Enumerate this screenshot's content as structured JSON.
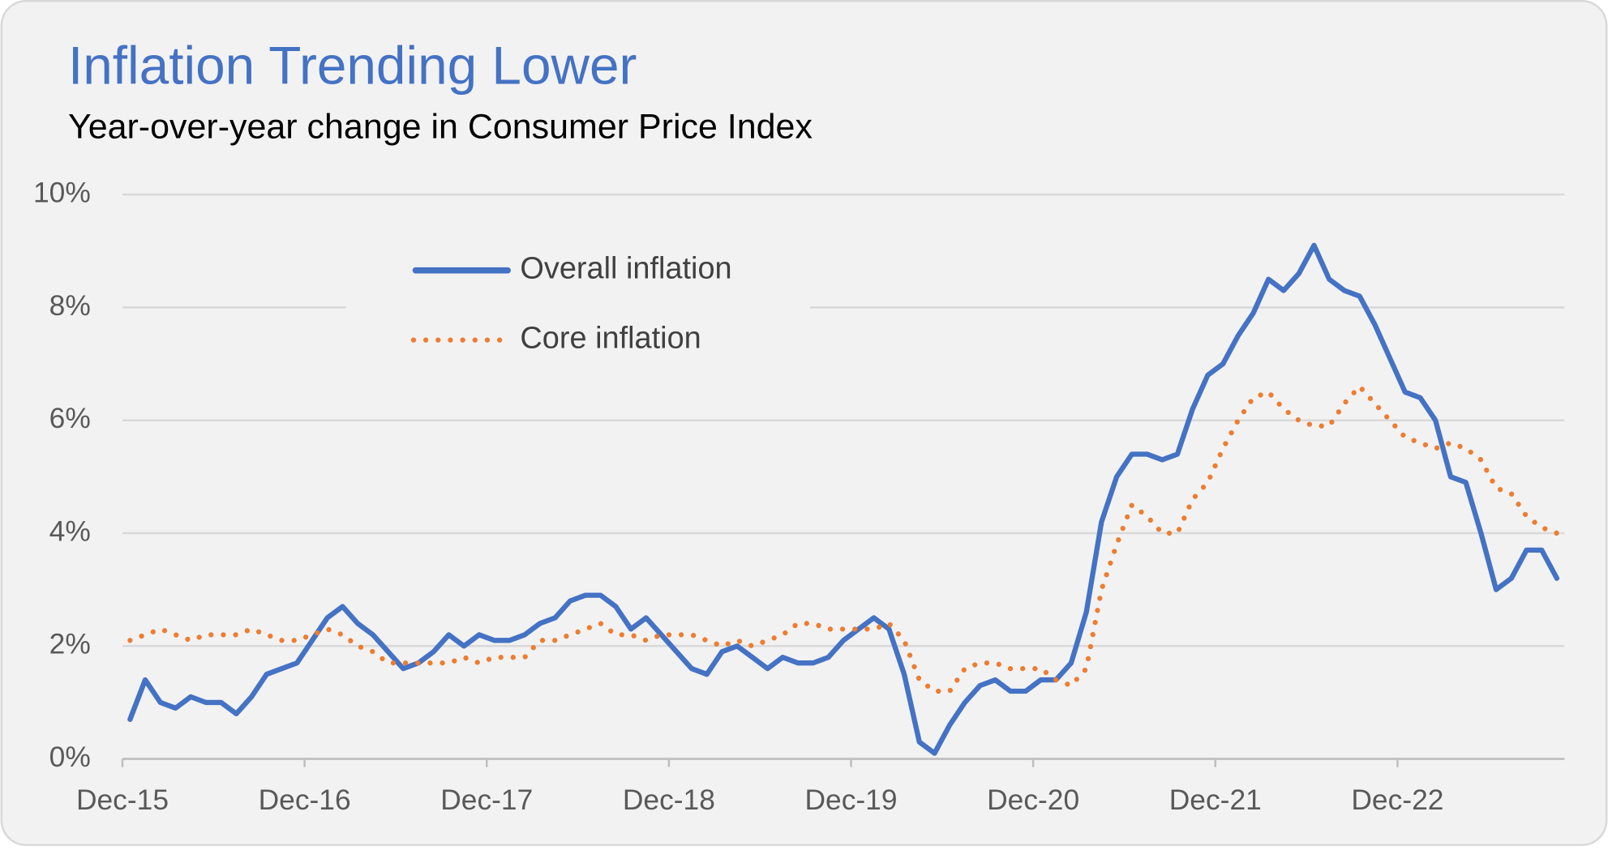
{
  "chart_data": {
    "type": "line",
    "title": "Inflation Trending Lower",
    "subtitle": "Year-over-year change in Consumer Price Index",
    "categories": [
      "Dec-15",
      null,
      null,
      null,
      null,
      null,
      null,
      null,
      null,
      null,
      null,
      null,
      "Dec-16",
      null,
      null,
      null,
      null,
      null,
      null,
      null,
      null,
      null,
      null,
      null,
      "Dec-17",
      null,
      null,
      null,
      null,
      null,
      null,
      null,
      null,
      null,
      null,
      null,
      "Dec-18",
      null,
      null,
      null,
      null,
      null,
      null,
      null,
      null,
      null,
      null,
      null,
      "Dec-19",
      null,
      null,
      null,
      null,
      null,
      null,
      null,
      null,
      null,
      null,
      null,
      "Dec-20",
      null,
      null,
      null,
      null,
      null,
      null,
      null,
      null,
      null,
      null,
      null,
      "Dec-21",
      null,
      null,
      null,
      null,
      null,
      null,
      null,
      null,
      null,
      null,
      null,
      "Dec-22",
      null,
      null,
      null,
      null,
      null,
      null,
      null,
      null,
      null,
      null
    ],
    "series": [
      {
        "name": "Overall inflation",
        "color": "#4472c4",
        "style": "solid",
        "values": [
          0.7,
          1.4,
          1.0,
          0.9,
          1.1,
          1.0,
          1.0,
          0.8,
          1.1,
          1.5,
          1.6,
          1.7,
          2.1,
          2.5,
          2.7,
          2.4,
          2.2,
          1.9,
          1.6,
          1.7,
          1.9,
          2.2,
          2.0,
          2.2,
          2.1,
          2.1,
          2.2,
          2.4,
          2.5,
          2.8,
          2.9,
          2.9,
          2.7,
          2.3,
          2.5,
          2.2,
          1.9,
          1.6,
          1.5,
          1.9,
          2.0,
          1.8,
          1.6,
          1.8,
          1.7,
          1.7,
          1.8,
          2.1,
          2.3,
          2.5,
          2.3,
          1.5,
          0.3,
          0.1,
          0.6,
          1.0,
          1.3,
          1.4,
          1.2,
          1.2,
          1.4,
          1.4,
          1.7,
          2.6,
          4.2,
          5.0,
          5.4,
          5.4,
          5.3,
          5.4,
          6.2,
          6.8,
          7.0,
          7.5,
          7.9,
          8.5,
          8.3,
          8.6,
          9.1,
          8.5,
          8.3,
          8.2,
          7.7,
          7.1,
          6.5,
          6.4,
          6.0,
          5.0,
          4.9,
          4.0,
          3.0,
          3.2,
          3.7,
          3.7,
          3.2
        ]
      },
      {
        "name": "Core inflation",
        "color": "#ed7d31",
        "style": "dotted",
        "values": [
          2.1,
          2.2,
          2.3,
          2.2,
          2.1,
          2.2,
          2.2,
          2.2,
          2.3,
          2.2,
          2.1,
          2.1,
          2.2,
          2.3,
          2.2,
          2.0,
          1.9,
          1.7,
          1.7,
          1.7,
          1.7,
          1.7,
          1.8,
          1.7,
          1.8,
          1.8,
          1.8,
          2.1,
          2.1,
          2.2,
          2.3,
          2.4,
          2.2,
          2.2,
          2.1,
          2.2,
          2.2,
          2.2,
          2.1,
          2.0,
          2.1,
          2.0,
          2.1,
          2.2,
          2.4,
          2.4,
          2.3,
          2.3,
          2.3,
          2.3,
          2.4,
          2.1,
          1.4,
          1.2,
          1.2,
          1.6,
          1.7,
          1.7,
          1.6,
          1.6,
          1.6,
          1.4,
          1.3,
          1.6,
          3.0,
          3.8,
          4.5,
          4.3,
          4.0,
          4.0,
          4.6,
          4.9,
          5.5,
          6.0,
          6.4,
          6.5,
          6.2,
          6.0,
          5.9,
          5.9,
          6.3,
          6.6,
          6.3,
          6.0,
          5.7,
          5.6,
          5.5,
          5.6,
          5.5,
          5.3,
          4.8,
          4.7,
          4.3,
          4.1,
          4.0
        ]
      }
    ],
    "ylim": [
      0,
      10
    ],
    "yticks": [
      {
        "value": 0,
        "label": "0%"
      },
      {
        "value": 2,
        "label": "2%"
      },
      {
        "value": 4,
        "label": "4%"
      },
      {
        "value": 6,
        "label": "6%"
      },
      {
        "value": 8,
        "label": "8%"
      },
      {
        "value": 10,
        "label": "10%"
      }
    ],
    "grid": true,
    "legend": "top-left"
  }
}
